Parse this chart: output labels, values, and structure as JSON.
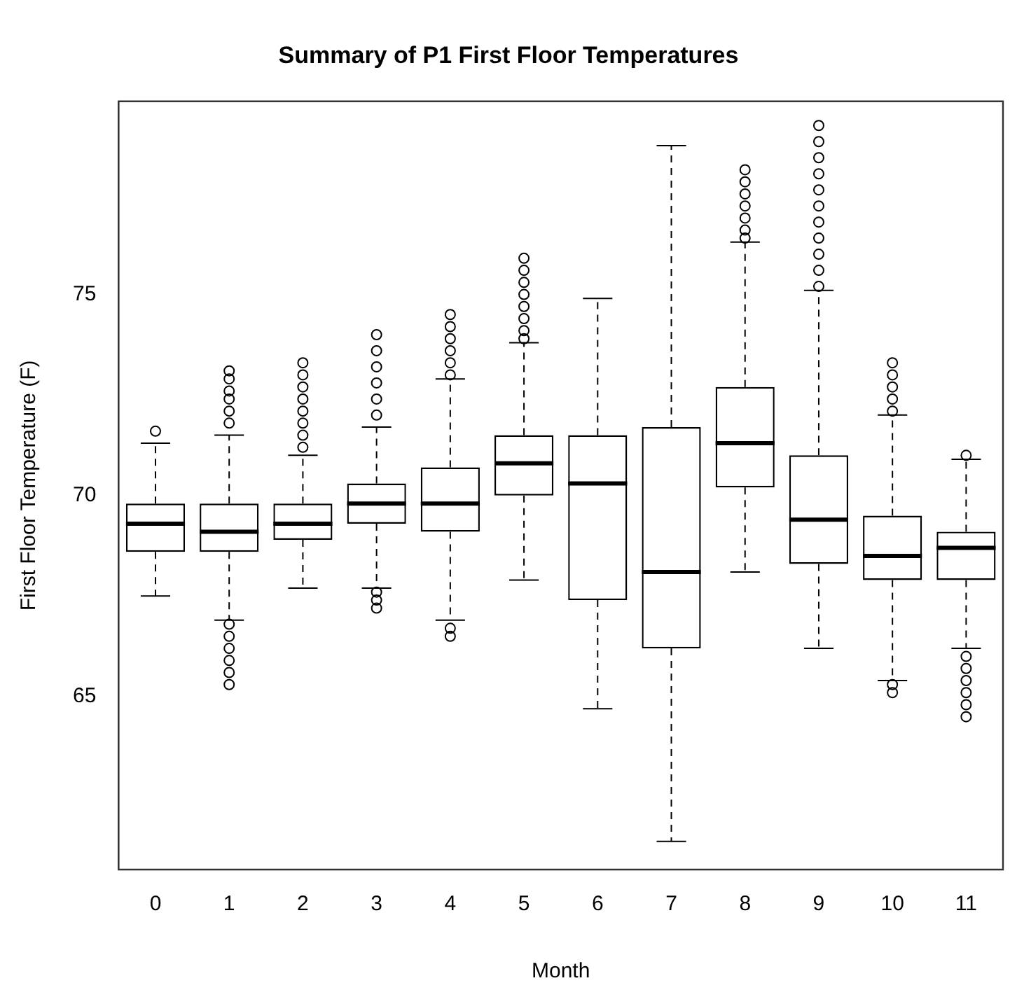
{
  "chart_data": {
    "type": "box",
    "title": "Summary of P1 First Floor Temperatures",
    "xlabel": "Month",
    "ylabel": "First Floor Temperature (F)",
    "categories": [
      "0",
      "1",
      "2",
      "3",
      "4",
      "5",
      "6",
      "7",
      "8",
      "9",
      "10",
      "11"
    ],
    "ylim": [
      60.7,
      79.8
    ],
    "yticks": [
      65,
      70,
      75
    ],
    "grid": false,
    "boxes": [
      {
        "low": 67.5,
        "q1": 68.6,
        "median": 69.3,
        "q3": 69.8,
        "high": 71.3,
        "outliers": [
          71.6
        ]
      },
      {
        "low": 66.9,
        "q1": 68.6,
        "median": 69.1,
        "q3": 69.8,
        "high": 71.5,
        "outliers": [
          73.1,
          72.9,
          72.6,
          72.4,
          72.1,
          71.8,
          66.8,
          66.5,
          66.2,
          65.9,
          65.6,
          65.3
        ]
      },
      {
        "low": 67.7,
        "q1": 68.9,
        "median": 69.3,
        "q3": 69.8,
        "high": 71.0,
        "outliers": [
          73.3,
          73.0,
          72.7,
          72.4,
          72.1,
          71.8,
          71.5,
          71.2
        ]
      },
      {
        "low": 67.7,
        "q1": 69.3,
        "median": 69.8,
        "q3": 70.3,
        "high": 71.7,
        "outliers": [
          74.0,
          73.6,
          73.2,
          72.8,
          72.4,
          72.0,
          67.6,
          67.4,
          67.2
        ]
      },
      {
        "low": 66.9,
        "q1": 69.1,
        "median": 69.8,
        "q3": 70.7,
        "high": 72.9,
        "outliers": [
          74.5,
          74.2,
          73.9,
          73.6,
          73.3,
          73.0,
          66.7,
          66.5
        ]
      },
      {
        "low": 67.9,
        "q1": 70.0,
        "median": 70.8,
        "q3": 71.5,
        "high": 73.8,
        "outliers": [
          75.9,
          75.6,
          75.3,
          75.0,
          74.7,
          74.4,
          74.1,
          73.9
        ]
      },
      {
        "low": 64.7,
        "q1": 67.4,
        "median": 70.3,
        "q3": 71.5,
        "high": 74.9
      },
      {
        "low": 61.4,
        "q1": 66.2,
        "median": 68.1,
        "q3": 71.7,
        "high": 78.7
      },
      {
        "low": 68.1,
        "q1": 70.2,
        "median": 71.3,
        "q3": 72.7,
        "high": 76.3,
        "outliers": [
          78.1,
          77.8,
          77.5,
          77.2,
          76.9,
          76.6,
          76.4
        ]
      },
      {
        "low": 66.2,
        "q1": 68.3,
        "median": 69.4,
        "q3": 71.0,
        "high": 75.1,
        "outliers": [
          79.2,
          78.8,
          78.4,
          78.0,
          77.6,
          77.2,
          76.8,
          76.4,
          76.0,
          75.6,
          75.2
        ]
      },
      {
        "low": 65.4,
        "q1": 67.9,
        "median": 68.5,
        "q3": 69.5,
        "high": 72.0,
        "outliers": [
          73.3,
          73.0,
          72.7,
          72.4,
          72.1,
          65.3,
          65.1
        ]
      },
      {
        "low": 66.2,
        "q1": 67.9,
        "median": 68.7,
        "q3": 69.1,
        "high": 70.9,
        "outliers": [
          71.0,
          66.0,
          65.7,
          65.4,
          65.1,
          64.8,
          64.5
        ]
      }
    ]
  }
}
